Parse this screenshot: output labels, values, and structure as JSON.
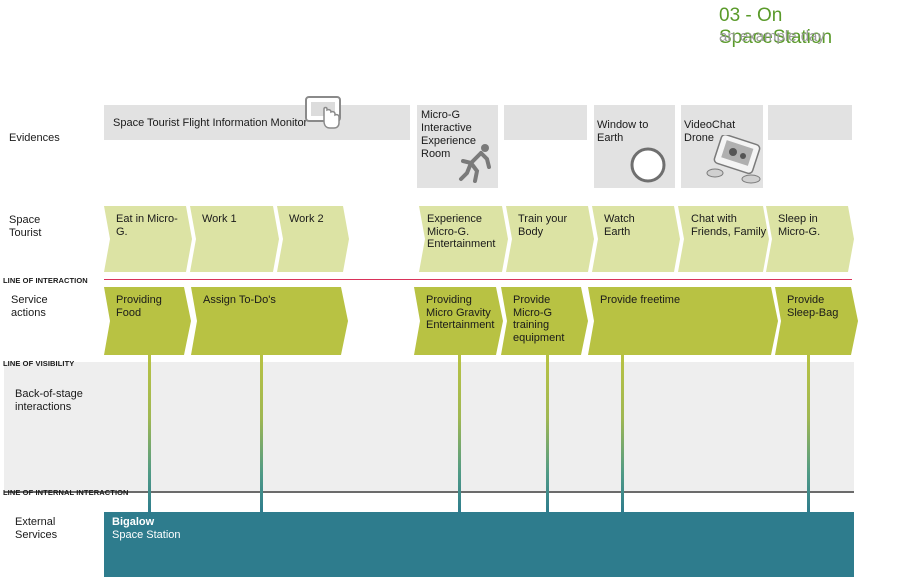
{
  "header": {
    "title": "03 - On SpaceStation",
    "subtitle": "an example day"
  },
  "lanes": {
    "evidences": "Evidences",
    "space_tourist": "Space\nTourist",
    "service_actions": "Service\nactions",
    "back_of_stage": "Back-of-stage\ninteractions",
    "external_services": "External\nServices"
  },
  "lines": {
    "interaction": "LINE OF INTERACTION",
    "visibility": "LINE OF VISIBILITY",
    "internal": "LINE OF INTERNAL INTERACTION"
  },
  "evidences": [
    {
      "label": "Space Tourist Flight Information Monitor",
      "icon": "touch-tablet-icon"
    },
    {
      "label": "Micro-G\nInteractive\nExperience\nRoom",
      "icon": "floating-person-icon"
    },
    {
      "label": ""
    },
    {
      "label": "Window to\nEarth",
      "icon": "porthole-icon"
    },
    {
      "label": "VideoChat\nDrone",
      "icon": "drone-icon"
    },
    {
      "label": ""
    }
  ],
  "tourist_actions": [
    "Eat in Micro-G.",
    "Work 1",
    "Work 2",
    "Experience\nMicro-G.\nEntertainment",
    "Train your\nBody",
    "Watch\nEarth",
    "Chat with\nFriends, Family",
    "Sleep in\nMicro-G."
  ],
  "service_actions": [
    "Providing\nFood",
    "Assign To-Do's",
    "Providing\nMicro Gravity\nEntertainment",
    "Provide\nMicro-G\ntraining\nequipment",
    "Provide freetime",
    "Provide\nSleep-Bag"
  ],
  "external": {
    "name": "Bigalow",
    "sub": "Space Station"
  },
  "colors": {
    "tourist": "#dce3a4",
    "service": "#b8c243",
    "external": "#2e7c8d",
    "interaction_line": "#d9325a",
    "title": "#5a9a2a"
  }
}
